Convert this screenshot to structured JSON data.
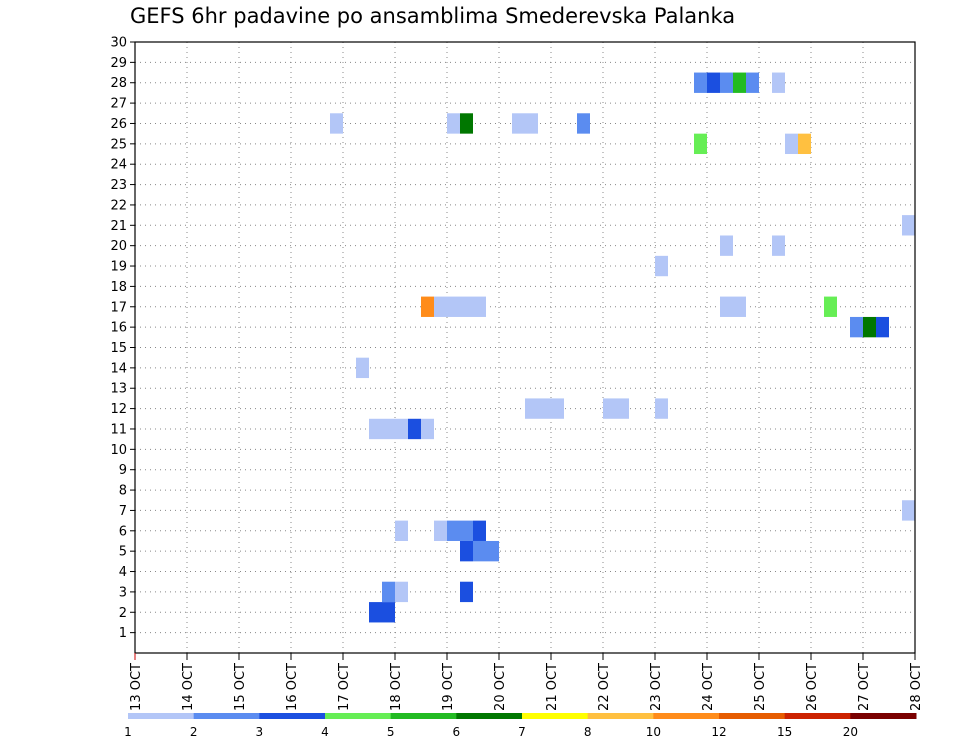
{
  "title": "GEFS 6hr padavine po ansamblima Smederevska Palanka",
  "chart_data": {
    "type": "heatmap",
    "title": "GEFS 6hr padavine po ansamblima Smederevska Palanka",
    "xlabel": "",
    "ylabel": "",
    "x_ticks": [
      "13 OCT",
      "14 OCT",
      "15 OCT",
      "16 OCT",
      "17 OCT",
      "18 OCT",
      "19 OCT",
      "20 OCT",
      "21 OCT",
      "22 OCT",
      "23 OCT",
      "24 OCT",
      "25 OCT",
      "26 OCT",
      "27 OCT",
      "28 OCT"
    ],
    "y_ticks": [
      1,
      2,
      3,
      4,
      5,
      6,
      7,
      8,
      9,
      10,
      11,
      12,
      13,
      14,
      15,
      16,
      17,
      18,
      19,
      20,
      21,
      22,
      23,
      24,
      25,
      26,
      27,
      28,
      29,
      30
    ],
    "xlim": [
      "13 OCT",
      "28 OCT"
    ],
    "ylim": [
      0,
      30
    ],
    "grid": true,
    "colorbar": {
      "labels": [
        "1",
        "2",
        "3",
        "4",
        "5",
        "6",
        "7",
        "8",
        "10",
        "12",
        "15",
        "20"
      ],
      "colors": [
        "#b3c6f7",
        "#5b8cf0",
        "#1b4fe0",
        "#66ee55",
        "#22bb22",
        "#007700",
        "#ffff00",
        "#ffc040",
        "#ff8c1a",
        "#e65c00",
        "#cc2200",
        "#7a0000"
      ]
    },
    "cells": [
      {
        "member": 2,
        "date": "17 OCT",
        "hour": 12,
        "color": "#1b4fe0"
      },
      {
        "member": 2,
        "date": "17 OCT",
        "hour": 18,
        "color": "#1b4fe0"
      },
      {
        "member": 3,
        "date": "17 OCT",
        "hour": 18,
        "color": "#5b8cf0"
      },
      {
        "member": 3,
        "date": "18 OCT",
        "hour": 0,
        "color": "#b3c6f7"
      },
      {
        "member": 3,
        "date": "19 OCT",
        "hour": 6,
        "color": "#1b4fe0"
      },
      {
        "member": 5,
        "date": "19 OCT",
        "hour": 6,
        "color": "#1b4fe0"
      },
      {
        "member": 5,
        "date": "19 OCT",
        "hour": 12,
        "color": "#5b8cf0"
      },
      {
        "member": 5,
        "date": "19 OCT",
        "hour": 18,
        "color": "#5b8cf0"
      },
      {
        "member": 6,
        "date": "18 OCT",
        "hour": 0,
        "color": "#b3c6f7"
      },
      {
        "member": 6,
        "date": "18 OCT",
        "hour": 18,
        "color": "#b3c6f7"
      },
      {
        "member": 6,
        "date": "19 OCT",
        "hour": 0,
        "color": "#5b8cf0"
      },
      {
        "member": 6,
        "date": "19 OCT",
        "hour": 6,
        "color": "#5b8cf0"
      },
      {
        "member": 6,
        "date": "19 OCT",
        "hour": 12,
        "color": "#1b4fe0"
      },
      {
        "member": 7,
        "date": "27 OCT",
        "hour": 18,
        "color": "#b3c6f7"
      },
      {
        "member": 11,
        "date": "17 OCT",
        "hour": 12,
        "color": "#b3c6f7"
      },
      {
        "member": 11,
        "date": "17 OCT",
        "hour": 18,
        "color": "#b3c6f7"
      },
      {
        "member": 11,
        "date": "18 OCT",
        "hour": 0,
        "color": "#b3c6f7"
      },
      {
        "member": 11,
        "date": "18 OCT",
        "hour": 6,
        "color": "#1b4fe0"
      },
      {
        "member": 11,
        "date": "18 OCT",
        "hour": 12,
        "color": "#b3c6f7"
      },
      {
        "member": 12,
        "date": "20 OCT",
        "hour": 12,
        "color": "#b3c6f7"
      },
      {
        "member": 12,
        "date": "20 OCT",
        "hour": 18,
        "color": "#b3c6f7"
      },
      {
        "member": 12,
        "date": "21 OCT",
        "hour": 0,
        "color": "#b3c6f7"
      },
      {
        "member": 12,
        "date": "22 OCT",
        "hour": 0,
        "color": "#b3c6f7"
      },
      {
        "member": 12,
        "date": "22 OCT",
        "hour": 6,
        "color": "#b3c6f7"
      },
      {
        "member": 12,
        "date": "23 OCT",
        "hour": 0,
        "color": "#b3c6f7"
      },
      {
        "member": 14,
        "date": "17 OCT",
        "hour": 6,
        "color": "#b3c6f7"
      },
      {
        "member": 16,
        "date": "26 OCT",
        "hour": 18,
        "color": "#5b8cf0"
      },
      {
        "member": 16,
        "date": "27 OCT",
        "hour": 0,
        "color": "#007700"
      },
      {
        "member": 16,
        "date": "27 OCT",
        "hour": 6,
        "color": "#1b4fe0"
      },
      {
        "member": 17,
        "date": "18 OCT",
        "hour": 12,
        "color": "#ff8c1a"
      },
      {
        "member": 17,
        "date": "18 OCT",
        "hour": 18,
        "color": "#b3c6f7"
      },
      {
        "member": 17,
        "date": "19 OCT",
        "hour": 0,
        "color": "#b3c6f7"
      },
      {
        "member": 17,
        "date": "19 OCT",
        "hour": 6,
        "color": "#b3c6f7"
      },
      {
        "member": 17,
        "date": "19 OCT",
        "hour": 12,
        "color": "#b3c6f7"
      },
      {
        "member": 17,
        "date": "24 OCT",
        "hour": 6,
        "color": "#b3c6f7"
      },
      {
        "member": 17,
        "date": "24 OCT",
        "hour": 12,
        "color": "#b3c6f7"
      },
      {
        "member": 17,
        "date": "26 OCT",
        "hour": 6,
        "color": "#66ee55"
      },
      {
        "member": 19,
        "date": "23 OCT",
        "hour": 0,
        "color": "#b3c6f7"
      },
      {
        "member": 20,
        "date": "24 OCT",
        "hour": 6,
        "color": "#b3c6f7"
      },
      {
        "member": 20,
        "date": "25 OCT",
        "hour": 6,
        "color": "#b3c6f7"
      },
      {
        "member": 21,
        "date": "27 OCT",
        "hour": 18,
        "color": "#b3c6f7"
      },
      {
        "member": 25,
        "date": "23 OCT",
        "hour": 18,
        "color": "#66ee55"
      },
      {
        "member": 25,
        "date": "25 OCT",
        "hour": 12,
        "color": "#b3c6f7"
      },
      {
        "member": 25,
        "date": "25 OCT",
        "hour": 18,
        "color": "#ffc040"
      },
      {
        "member": 26,
        "date": "16 OCT",
        "hour": 18,
        "color": "#b3c6f7"
      },
      {
        "member": 26,
        "date": "19 OCT",
        "hour": 0,
        "color": "#b3c6f7"
      },
      {
        "member": 26,
        "date": "19 OCT",
        "hour": 6,
        "color": "#007700"
      },
      {
        "member": 26,
        "date": "20 OCT",
        "hour": 6,
        "color": "#b3c6f7"
      },
      {
        "member": 26,
        "date": "20 OCT",
        "hour": 12,
        "color": "#b3c6f7"
      },
      {
        "member": 26,
        "date": "21 OCT",
        "hour": 12,
        "color": "#5b8cf0"
      },
      {
        "member": 28,
        "date": "23 OCT",
        "hour": 18,
        "color": "#5b8cf0"
      },
      {
        "member": 28,
        "date": "24 OCT",
        "hour": 0,
        "color": "#1b4fe0"
      },
      {
        "member": 28,
        "date": "24 OCT",
        "hour": 6,
        "color": "#5b8cf0"
      },
      {
        "member": 28,
        "date": "24 OCT",
        "hour": 12,
        "color": "#22bb22"
      },
      {
        "member": 28,
        "date": "24 OCT",
        "hour": 18,
        "color": "#5b8cf0"
      },
      {
        "member": 28,
        "date": "25 OCT",
        "hour": 6,
        "color": "#b3c6f7"
      }
    ]
  }
}
